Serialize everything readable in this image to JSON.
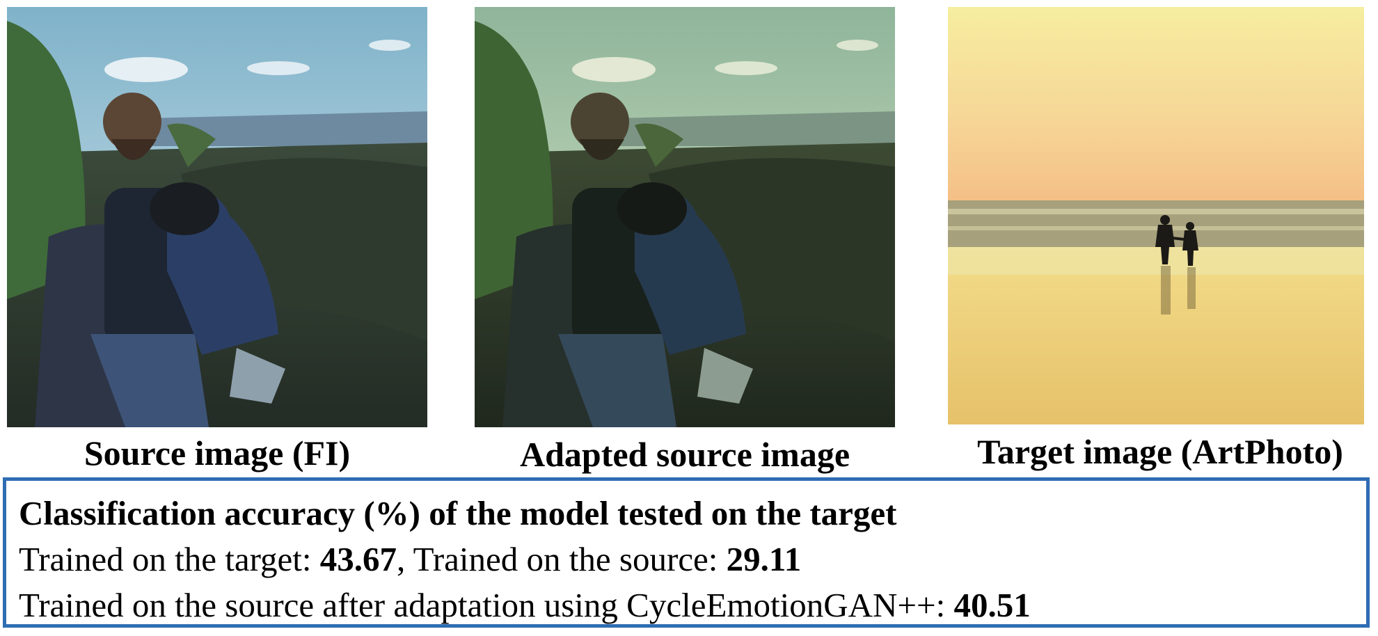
{
  "panels": [
    {
      "caption": "Source image (FI)",
      "scene": "couple-on-lava-field",
      "tone": "natural"
    },
    {
      "caption": "Adapted source image",
      "scene": "couple-on-lava-field",
      "tone": "stylized-green"
    },
    {
      "caption": "Target image (ArtPhoto)",
      "scene": "couple-on-beach-at-sunset",
      "tone": "warm-yellow"
    }
  ],
  "results": {
    "title": "Classification accuracy (%) of the model tested on the target",
    "line1": {
      "prefix": "Trained on the target: ",
      "value_a": "43.67",
      "middle": ", Trained on the source: ",
      "value_b": "29.11"
    },
    "line2": {
      "prefix": "Trained on the source after adaptation using CycleEmotionGAN++: ",
      "value": "40.51"
    },
    "border_color": "#2f6db3"
  }
}
